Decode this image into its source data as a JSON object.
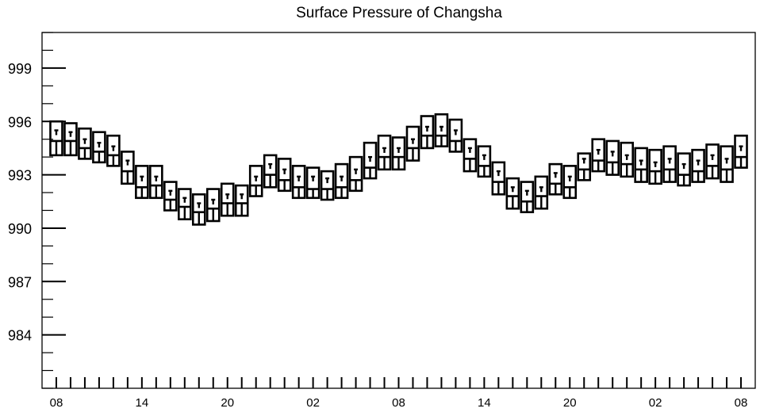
{
  "chart_data": {
    "type": "boxplot",
    "title": "Surface Pressure of Changsha",
    "xlabel": "",
    "ylabel": "",
    "ylim": [
      981,
      1001
    ],
    "y_ticks": [
      984,
      987,
      990,
      993,
      996,
      999
    ],
    "x_tick_labels": [
      "08",
      "14",
      "20",
      "02",
      "08",
      "14",
      "20",
      "02",
      "08"
    ],
    "x_label_hours": [
      0,
      6,
      12,
      18,
      24,
      30,
      36,
      42,
      48
    ],
    "x_range_hours": [
      -1,
      49
    ],
    "grid": false,
    "legend": "none",
    "line_color": "#000000",
    "boxes": [
      {
        "hour": 0,
        "q1": 994.1,
        "median": 994.9,
        "mean": 995.5,
        "q3": 996.0
      },
      {
        "hour": 1,
        "q1": 994.1,
        "median": 994.9,
        "mean": 995.4,
        "q3": 995.9
      },
      {
        "hour": 2,
        "q1": 993.9,
        "median": 994.5,
        "mean": 995.0,
        "q3": 995.6
      },
      {
        "hour": 3,
        "q1": 993.7,
        "median": 994.3,
        "mean": 994.8,
        "q3": 995.4
      },
      {
        "hour": 4,
        "q1": 993.5,
        "median": 994.1,
        "mean": 994.6,
        "q3": 995.2
      },
      {
        "hour": 5,
        "q1": 992.5,
        "median": 993.2,
        "mean": 993.8,
        "q3": 994.3
      },
      {
        "hour": 6,
        "q1": 991.7,
        "median": 992.3,
        "mean": 992.9,
        "q3": 993.5
      },
      {
        "hour": 7,
        "q1": 991.7,
        "median": 992.4,
        "mean": 992.9,
        "q3": 993.5
      },
      {
        "hour": 8,
        "q1": 991.0,
        "median": 991.6,
        "mean": 992.1,
        "q3": 992.6
      },
      {
        "hour": 9,
        "q1": 990.5,
        "median": 991.2,
        "mean": 991.7,
        "q3": 992.2
      },
      {
        "hour": 10,
        "q1": 990.2,
        "median": 990.9,
        "mean": 991.4,
        "q3": 991.9
      },
      {
        "hour": 11,
        "q1": 990.4,
        "median": 991.1,
        "mean": 991.6,
        "q3": 992.2
      },
      {
        "hour": 12,
        "q1": 990.7,
        "median": 991.4,
        "mean": 991.9,
        "q3": 992.5
      },
      {
        "hour": 13,
        "q1": 990.7,
        "median": 991.4,
        "mean": 991.9,
        "q3": 992.4
      },
      {
        "hour": 14,
        "q1": 991.8,
        "median": 992.4,
        "mean": 992.9,
        "q3": 993.5
      },
      {
        "hour": 15,
        "q1": 992.3,
        "median": 993.0,
        "mean": 993.6,
        "q3": 994.1
      },
      {
        "hour": 16,
        "q1": 992.1,
        "median": 992.7,
        "mean": 993.3,
        "q3": 993.9
      },
      {
        "hour": 17,
        "q1": 991.7,
        "median": 992.3,
        "mean": 992.9,
        "q3": 993.5
      },
      {
        "hour": 18,
        "q1": 991.7,
        "median": 992.2,
        "mean": 992.9,
        "q3": 993.4
      },
      {
        "hour": 19,
        "q1": 991.6,
        "median": 992.2,
        "mean": 992.8,
        "q3": 993.2
      },
      {
        "hour": 20,
        "q1": 991.7,
        "median": 992.3,
        "mean": 992.9,
        "q3": 993.6
      },
      {
        "hour": 21,
        "q1": 992.1,
        "median": 992.7,
        "mean": 993.3,
        "q3": 994.0
      },
      {
        "hour": 22,
        "q1": 992.8,
        "median": 993.4,
        "mean": 994.0,
        "q3": 994.8
      },
      {
        "hour": 23,
        "q1": 993.3,
        "median": 994.0,
        "mean": 994.5,
        "q3": 995.2
      },
      {
        "hour": 24,
        "q1": 993.3,
        "median": 994.0,
        "mean": 994.5,
        "q3": 995.1
      },
      {
        "hour": 25,
        "q1": 993.8,
        "median": 994.5,
        "mean": 995.0,
        "q3": 995.7
      },
      {
        "hour": 26,
        "q1": 994.5,
        "median": 995.2,
        "mean": 995.7,
        "q3": 996.3
      },
      {
        "hour": 27,
        "q1": 994.6,
        "median": 995.2,
        "mean": 995.7,
        "q3": 996.4
      },
      {
        "hour": 28,
        "q1": 994.3,
        "median": 994.9,
        "mean": 995.5,
        "q3": 996.1
      },
      {
        "hour": 29,
        "q1": 993.2,
        "median": 993.9,
        "mean": 994.5,
        "q3": 995.0
      },
      {
        "hour": 30,
        "q1": 992.9,
        "median": 993.5,
        "mean": 994.1,
        "q3": 994.6
      },
      {
        "hour": 31,
        "q1": 991.9,
        "median": 992.6,
        "mean": 993.2,
        "q3": 993.7
      },
      {
        "hour": 32,
        "q1": 991.1,
        "median": 991.8,
        "mean": 992.3,
        "q3": 992.8
      },
      {
        "hour": 33,
        "q1": 990.9,
        "median": 991.5,
        "mean": 992.1,
        "q3": 992.6
      },
      {
        "hour": 34,
        "q1": 991.1,
        "median": 991.8,
        "mean": 992.3,
        "q3": 992.9
      },
      {
        "hour": 35,
        "q1": 991.9,
        "median": 992.5,
        "mean": 993.1,
        "q3": 993.6
      },
      {
        "hour": 36,
        "q1": 991.7,
        "median": 992.3,
        "mean": 992.9,
        "q3": 993.5
      },
      {
        "hour": 37,
        "q1": 992.7,
        "median": 993.3,
        "mean": 993.9,
        "q3": 994.2
      },
      {
        "hour": 38,
        "q1": 993.2,
        "median": 993.8,
        "mean": 994.4,
        "q3": 995.0
      },
      {
        "hour": 39,
        "q1": 993.0,
        "median": 993.7,
        "mean": 994.3,
        "q3": 994.9
      },
      {
        "hour": 40,
        "q1": 992.9,
        "median": 993.6,
        "mean": 994.1,
        "q3": 994.8
      },
      {
        "hour": 41,
        "q1": 992.6,
        "median": 993.3,
        "mean": 993.8,
        "q3": 994.5
      },
      {
        "hour": 42,
        "q1": 992.5,
        "median": 993.2,
        "mean": 993.7,
        "q3": 994.4
      },
      {
        "hour": 43,
        "q1": 992.6,
        "median": 993.3,
        "mean": 993.9,
        "q3": 994.6
      },
      {
        "hour": 44,
        "q1": 992.4,
        "median": 993.0,
        "mean": 993.6,
        "q3": 994.2
      },
      {
        "hour": 45,
        "q1": 992.6,
        "median": 993.2,
        "mean": 993.8,
        "q3": 994.4
      },
      {
        "hour": 46,
        "q1": 992.8,
        "median": 993.5,
        "mean": 994.1,
        "q3": 994.7
      },
      {
        "hour": 47,
        "q1": 992.6,
        "median": 993.3,
        "mean": 993.9,
        "q3": 994.6
      },
      {
        "hour": 48,
        "q1": 993.4,
        "median": 994.0,
        "mean": 994.6,
        "q3": 995.2
      }
    ]
  }
}
